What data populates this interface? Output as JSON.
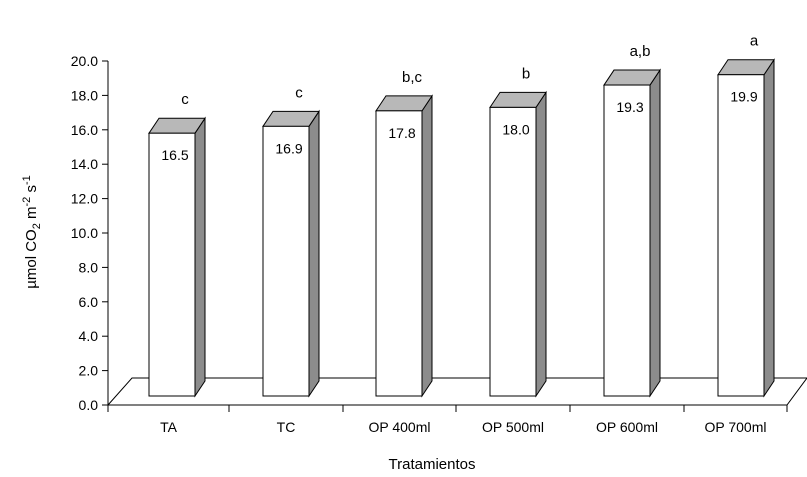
{
  "chart_data": {
    "type": "bar",
    "title": "",
    "xlabel": "Tratamientos",
    "ylabel": {
      "prefix": "µmol CO",
      "sub": "2",
      "middle": " m",
      "sup1": "-2",
      "space": " s",
      "sup2": "-1"
    },
    "ylim": [
      0,
      20
    ],
    "yticks": [
      "0.0",
      "2.0",
      "4.0",
      "6.0",
      "8.0",
      "10.0",
      "12.0",
      "14.0",
      "16.0",
      "18.0",
      "20.0"
    ],
    "grid": false,
    "legend": "none",
    "style": "3d-column",
    "categories": [
      "TA",
      "TC",
      "OP 400ml",
      "OP 500ml",
      "OP 600ml",
      "OP 700ml"
    ],
    "values": [
      16.5,
      16.9,
      17.8,
      18.0,
      19.3,
      19.9
    ],
    "value_labels": [
      "16.5",
      "16.9",
      "17.8",
      "18.0",
      "19.3",
      "19.9"
    ],
    "significance_letters": [
      "c",
      "c",
      "b,c",
      "b",
      "a,b",
      "a"
    ],
    "colors": {
      "bar_front": "#ffffff",
      "bar_top": "#b8b8b8",
      "bar_side": "#8c8c8c",
      "axis": "#000000",
      "floor": "#ffffff"
    }
  }
}
